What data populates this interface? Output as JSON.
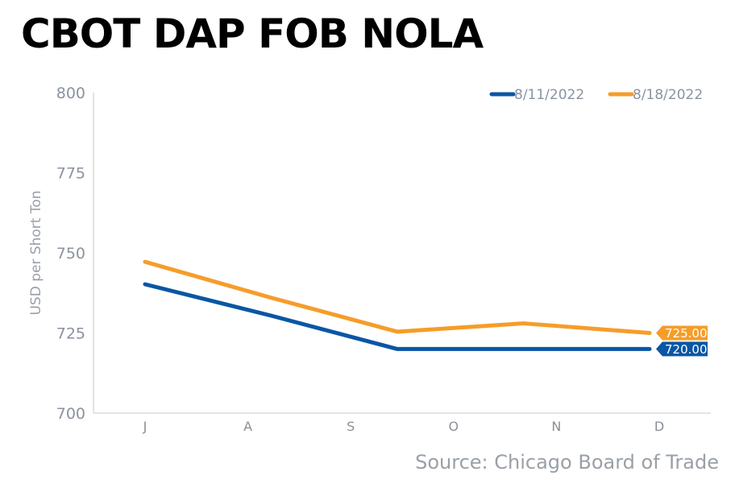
{
  "title": "CBOT DAP FOB NOLA",
  "source": "Source: Chicago Board of Trade",
  "chart_data": {
    "type": "line",
    "title": "CBOT DAP FOB NOLA",
    "xlabel": "",
    "ylabel": "USD per Short Ton",
    "ylim": [
      700,
      800
    ],
    "yticks": [
      700,
      725,
      750,
      775,
      800
    ],
    "xtick_labels": [
      "J",
      "A",
      "S",
      "O",
      "N",
      "D"
    ],
    "x": [
      0,
      1,
      2,
      3,
      4
    ],
    "series": [
      {
        "name": "8/11/2022",
        "color": "#0a56a4",
        "values": [
          740.2,
          730.4,
          720,
          720,
          720
        ],
        "end_label": "720.00"
      },
      {
        "name": "8/18/2022",
        "color": "#f59d2a",
        "values": [
          747.2,
          736,
          725.4,
          728,
          725
        ],
        "end_label": "725.00"
      }
    ],
    "grid": false,
    "legend": "top-right"
  }
}
